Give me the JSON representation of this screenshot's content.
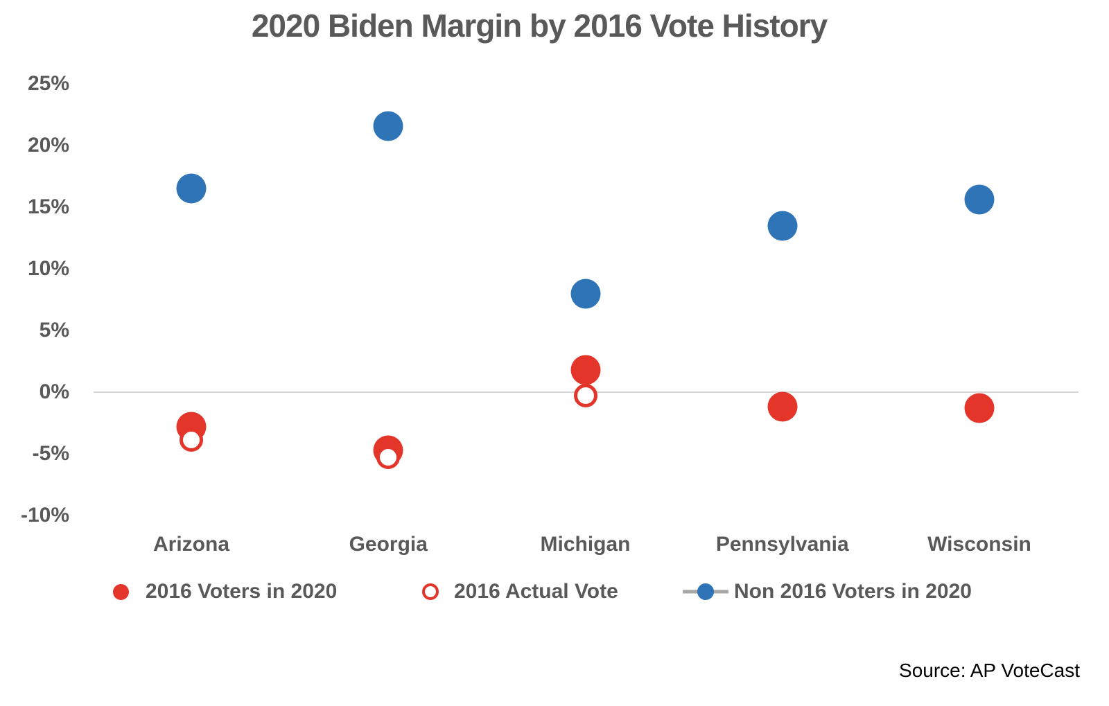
{
  "title": "2020 Biden Margin by 2016 Vote History",
  "source": "Source: AP VoteCast",
  "colors": {
    "red": "#E4352B",
    "blue": "#2E74B6",
    "text": "#595959",
    "gridline": "#D6D6D6",
    "legend_line": "#A6A6A6"
  },
  "chart_data": {
    "type": "scatter",
    "title": "2020 Biden Margin by 2016 Vote History",
    "categories": [
      "Arizona",
      "Georgia",
      "Michigan",
      "Pennsylvania",
      "Wisconsin"
    ],
    "series": [
      {
        "name": "2016 Voters in 2020",
        "marker": "filled-red",
        "values": [
          -2.8,
          -4.7,
          1.8,
          -1.2,
          -1.3
        ]
      },
      {
        "name": "2016 Actual Vote",
        "marker": "hollow-red",
        "values": [
          -3.9,
          -5.3,
          -0.3,
          null,
          null
        ]
      },
      {
        "name": "Non 2016 Voters in 2020",
        "marker": "filled-blue",
        "values": [
          16.5,
          21.6,
          8.0,
          13.5,
          15.6
        ]
      }
    ],
    "xlabel": "",
    "ylabel": "",
    "ylim": [
      -10,
      25
    ],
    "yticks": {
      "values": [
        25,
        20,
        15,
        10,
        5,
        0,
        -5,
        -10
      ],
      "labels": [
        "25%",
        "20%",
        "15%",
        "10%",
        "5%",
        "0%",
        "-5%",
        "-10%"
      ]
    },
    "grid": "zero-line-only",
    "legend_position": "bottom"
  },
  "legend": {
    "items": [
      {
        "label": "2016 Voters in 2020",
        "marker": "dot-filled-red"
      },
      {
        "label": "2016 Actual Vote",
        "marker": "dot-hollow-red"
      },
      {
        "label": "Non 2016 Voters in 2020",
        "marker": "line-dot-blue"
      }
    ]
  }
}
